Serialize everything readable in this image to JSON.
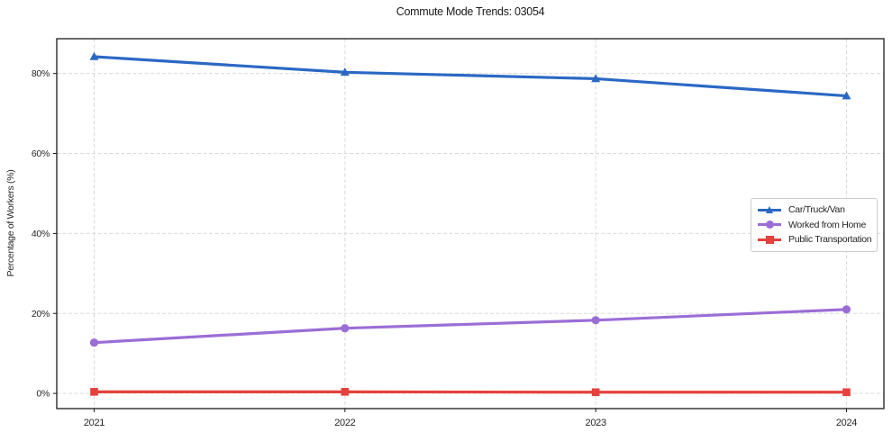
{
  "chart_data": {
    "type": "line",
    "title": "Commute Mode Trends: 03054",
    "xlabel": "",
    "ylabel": "Percentage of Workers (%)",
    "categories": [
      "2021",
      "2022",
      "2023",
      "2024"
    ],
    "series": [
      {
        "name": "Car/Truck/Van",
        "color": "#2b68c4",
        "marker": "triangle",
        "values": [
          84.2,
          80.3,
          78.7,
          74.4
        ]
      },
      {
        "name": "Worked from Home",
        "color": "#9b6ed6",
        "marker": "circle",
        "values": [
          12.7,
          16.3,
          18.3,
          21.0
        ]
      },
      {
        "name": "Public Transportation",
        "color": "#e5413d",
        "marker": "square",
        "values": [
          0.4,
          0.4,
          0.3,
          0.3
        ]
      }
    ],
    "yticks": [
      0,
      20,
      40,
      60,
      80
    ],
    "ytick_labels": [
      "0%",
      "20%",
      "40%",
      "60%",
      "80%"
    ],
    "ylim": [
      -3.8,
      88.7
    ],
    "grid": true,
    "grid_style": "dashed",
    "grid_color": "#d9d9d9",
    "axis_frame_color": "#1a1a1a",
    "legend_position": "right-center"
  }
}
